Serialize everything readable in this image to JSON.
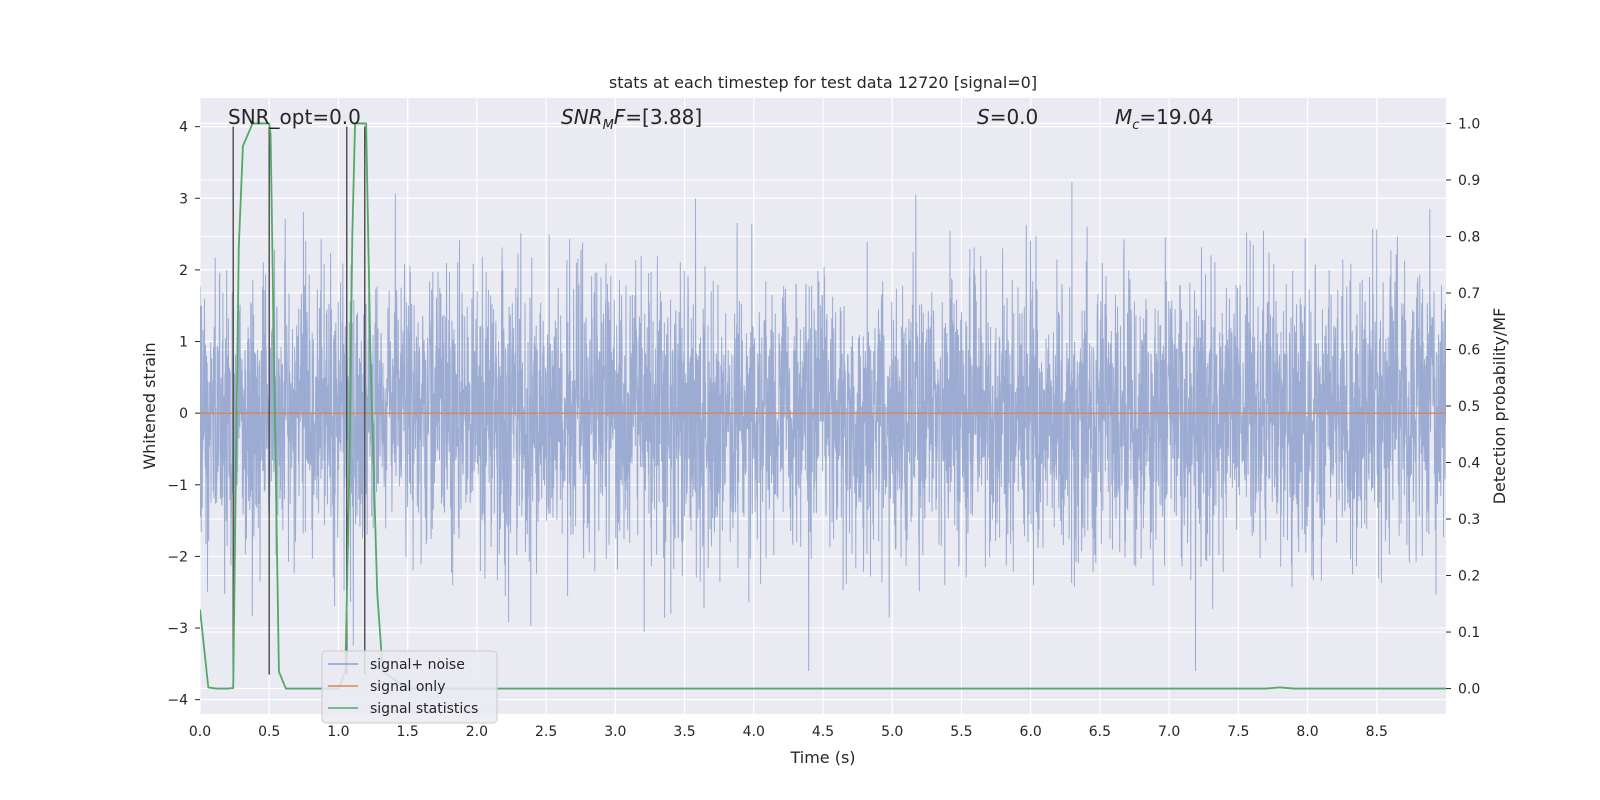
{
  "chart_data": {
    "type": "line",
    "title": "stats at each timestep for test data 12720 [signal=0]",
    "xlabel": "Time (s)",
    "ylabel_left": "Whitened strain",
    "ylabel_right": "Detection probability/MF",
    "xlim": [
      0.0,
      9.0
    ],
    "ylim_left": [
      -4.2,
      4.4
    ],
    "ylim_right": [
      -0.045,
      1.045
    ],
    "x_ticks": [
      "0.0",
      "0.5",
      "1.0",
      "1.5",
      "2.0",
      "2.5",
      "3.0",
      "3.5",
      "4.0",
      "4.5",
      "5.0",
      "5.5",
      "6.0",
      "6.5",
      "7.0",
      "7.5",
      "8.0",
      "8.5"
    ],
    "y_ticks_left": [
      "4",
      "3",
      "2",
      "1",
      "0",
      "−1",
      "−2",
      "−3",
      "−4"
    ],
    "y_ticks_right": [
      "1.0",
      "0.9",
      "0.8",
      "0.7",
      "0.6",
      "0.5",
      "0.4",
      "0.3",
      "0.2",
      "0.1",
      "0.0"
    ],
    "grid": true,
    "legend_placement": "lower-left",
    "annotations": {
      "snr_opt": "SNR_opt=0.0",
      "snr_mf_label": "SNR",
      "snr_mf_sub": "M",
      "snr_mf_tail": "F",
      "snr_mf_value": "=[3.88]",
      "s_label": "S",
      "s_value": "=0.0",
      "mc_label": "M",
      "mc_sub": "c",
      "mc_value": "=19.04"
    },
    "series": [
      {
        "name": "signal+ noise",
        "color": "#8da0cb",
        "description_values": "whitened strain noise, roughly within ±1.5 with spikes reaching about ±4",
        "envelope": {
          "typical_range": [
            -1.5,
            1.7
          ],
          "max": 4.0,
          "min": -3.6
        }
      },
      {
        "name": "signal only",
        "color": "#dd8452",
        "x": [
          0.0,
          9.0
        ],
        "y": [
          0.0,
          0.0
        ]
      },
      {
        "name": "signal statistics",
        "color": "#55a868",
        "x": [
          0.0,
          0.06,
          0.12,
          0.2,
          0.24,
          0.26,
          0.28,
          0.31,
          0.38,
          0.5,
          0.51,
          0.54,
          0.57,
          0.62,
          0.8,
          1.0,
          1.05,
          1.08,
          1.1,
          1.12,
          1.15,
          1.18,
          1.2,
          1.23,
          1.28,
          1.32,
          1.5,
          2.0,
          3.0,
          4.0,
          5.0,
          6.0,
          7.0,
          7.7,
          7.8,
          7.9,
          8.5,
          9.0
        ],
        "y": [
          0.14,
          0.002,
          0.0,
          0.0,
          0.001,
          0.4,
          0.78,
          0.96,
          1.0,
          1.0,
          0.98,
          0.5,
          0.03,
          0.0,
          0.0,
          0.0,
          0.03,
          0.4,
          0.8,
          1.0,
          1.0,
          1.0,
          1.0,
          0.6,
          0.17,
          0.03,
          0.0,
          0.0,
          0.0,
          0.0,
          0.0,
          0.0,
          0.0,
          0.0,
          0.002,
          0.0,
          0.0,
          0.0
        ]
      }
    ],
    "vertical_markers": {
      "color": "#555555",
      "x": [
        0.24,
        0.5,
        1.06,
        1.19
      ],
      "y_top": 4.0,
      "y_bottom": -3.65
    },
    "colors": {
      "plot_background": "#eaeaf2",
      "grid": "#ffffff",
      "text": "#262626"
    }
  }
}
